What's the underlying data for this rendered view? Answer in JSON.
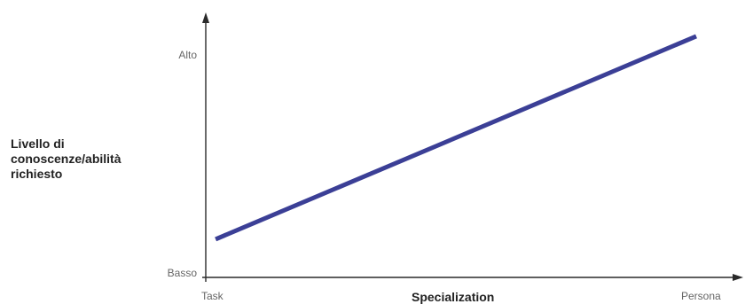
{
  "chart_data": {
    "type": "line",
    "title": "",
    "xlabel": "Specialization",
    "ylabel_lines": [
      "Livello di",
      "conoscenze/abilità",
      "richiesto"
    ],
    "x_tick_labels": [
      "Task",
      "Persona"
    ],
    "y_tick_labels": [
      "Basso",
      "Alto"
    ],
    "xlim": [
      0,
      1
    ],
    "ylim": [
      0,
      1
    ],
    "series": [
      {
        "x": [
          0.02,
          1.0
        ],
        "y": [
          0.15,
          1.1
        ]
      }
    ],
    "line_color": "#3b3f96",
    "axis_color": "#2a2a2a",
    "grid": false,
    "legend": false
  }
}
